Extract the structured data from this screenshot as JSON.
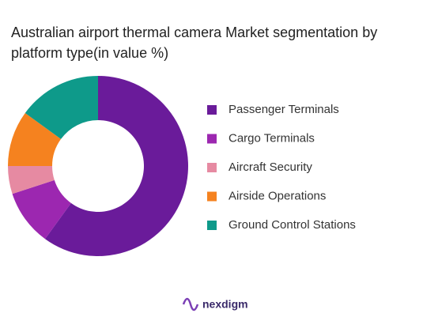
{
  "chart_data": {
    "type": "donut",
    "title": "Australian airport thermal camera Market segmentation by platform type(in value %)",
    "categories": [
      "Passenger Terminals",
      "Cargo Terminals",
      "Aircraft Security",
      "Airside Operations",
      "Ground Control Stations"
    ],
    "values": [
      60,
      10,
      5,
      10,
      15
    ],
    "colors": [
      "#6a1b9a",
      "#9c27b0",
      "#e68aa2",
      "#f5821f",
      "#0e9a8a"
    ],
    "legend": "right"
  },
  "brand": "nexdigm"
}
